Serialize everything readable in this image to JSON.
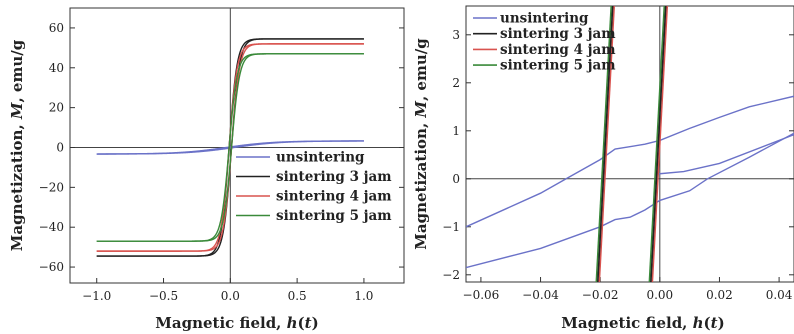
{
  "chart_data": [
    {
      "type": "line",
      "xlabel": "Magnetic field, h(t)",
      "ylabel": "Magnetization, M, emu/g",
      "xlim": [
        -1.2,
        1.3
      ],
      "ylim": [
        -68,
        70
      ],
      "x_ticks": [
        -1.0,
        -0.5,
        0.0,
        0.5,
        1.0
      ],
      "x_tick_labels": [
        "−1.0",
        "−0.5",
        "0.0",
        "0.5",
        "1.0"
      ],
      "y_ticks": [
        -60,
        -40,
        -20,
        0,
        20,
        40,
        60
      ],
      "y_tick_labels": [
        "−60",
        "−40",
        "−20",
        "0",
        "20",
        "40",
        "60"
      ],
      "legend_position": "lower-right",
      "series": [
        {
          "name": "unsintering",
          "color": "#6b72c8",
          "ms": 3.3,
          "hc": 0.03,
          "a": 0.35,
          "xmin": -1.0,
          "xmax": 1.0
        },
        {
          "name": "sintering 3 jam",
          "color": "#222222",
          "ms": 54.5,
          "hc": 0.009,
          "a": 0.06,
          "xmin": -1.0,
          "xmax": 1.0
        },
        {
          "name": "sintering 4 jam",
          "color": "#d9534f",
          "ms": 52.0,
          "hc": 0.009,
          "a": 0.06,
          "xmin": -1.0,
          "xmax": 1.0
        },
        {
          "name": "sintering 5 jam",
          "color": "#3a8a3a",
          "ms": 47.0,
          "hc": 0.009,
          "a": 0.06,
          "xmin": -1.0,
          "xmax": 1.0
        }
      ]
    },
    {
      "type": "line",
      "xlabel": "Magnetic field, h(t)",
      "ylabel": "Magnetization, M, emu/g",
      "xlim": [
        -0.065,
        0.045
      ],
      "ylim": [
        -2.15,
        3.6
      ],
      "x_ticks": [
        -0.06,
        -0.04,
        -0.02,
        0.0,
        0.02,
        0.04
      ],
      "x_tick_labels": [
        "−0.06",
        "−0.04",
        "−0.02",
        "0.00",
        "0.02",
        "0.04"
      ],
      "y_ticks": [
        -2,
        -1,
        0,
        1,
        2,
        3
      ],
      "y_tick_labels": [
        "−2",
        "−1",
        "0",
        "1",
        "2",
        "3"
      ],
      "legend_position": "top-left",
      "series": [
        {
          "name": "unsintering",
          "color": "#6b72c8",
          "upper": [
            [
              -0.065,
              -1.0
            ],
            [
              -0.04,
              -0.3
            ],
            [
              -0.03,
              0.05
            ],
            [
              -0.02,
              0.4
            ],
            [
              -0.015,
              0.62
            ],
            [
              -0.005,
              0.72
            ],
            [
              0.0,
              0.8
            ],
            [
              0.01,
              1.05
            ],
            [
              0.02,
              1.28
            ],
            [
              0.03,
              1.5
            ],
            [
              0.045,
              1.72
            ]
          ],
          "lower": [
            [
              -0.065,
              -1.85
            ],
            [
              -0.04,
              -1.45
            ],
            [
              -0.02,
              -1.0
            ],
            [
              -0.015,
              -0.85
            ],
            [
              -0.01,
              -0.8
            ],
            [
              -0.005,
              -0.65
            ],
            [
              0.0,
              -0.45
            ],
            [
              0.01,
              -0.25
            ],
            [
              0.016,
              0.0
            ],
            [
              0.03,
              0.45
            ],
            [
              0.045,
              0.95
            ]
          ],
          "upper_branch": [
            [
              -0.001,
              0.1
            ],
            [
              0.008,
              0.15
            ],
            [
              0.02,
              0.32
            ],
            [
              0.045,
              0.92
            ]
          ]
        },
        {
          "name": "sintering 3 jam",
          "color": "#222222"
        },
        {
          "name": "sintering 4 jam",
          "color": "#d9534f"
        },
        {
          "name": "sintering 5 jam",
          "color": "#3a8a3a"
        }
      ],
      "steep_lines": [
        {
          "color": "#3a8a3a",
          "points": [
            [
              -0.0213,
              -2.15
            ],
            [
              -0.0163,
              3.6
            ]
          ]
        },
        {
          "color": "#d9534f",
          "points": [
            [
              -0.0203,
              -2.15
            ],
            [
              -0.0153,
              3.6
            ]
          ]
        },
        {
          "color": "#222222",
          "points": [
            [
              -0.0208,
              -2.15
            ],
            [
              -0.0158,
              3.6
            ]
          ]
        },
        {
          "color": "#3a8a3a",
          "points": [
            [
              -0.0035,
              -2.15
            ],
            [
              0.0015,
              3.6
            ]
          ]
        },
        {
          "color": "#d9534f",
          "points": [
            [
              -0.0025,
              -2.15
            ],
            [
              0.0025,
              3.6
            ]
          ]
        },
        {
          "color": "#222222",
          "points": [
            [
              -0.003,
              -2.15
            ],
            [
              0.002,
              3.6
            ]
          ]
        }
      ]
    }
  ]
}
